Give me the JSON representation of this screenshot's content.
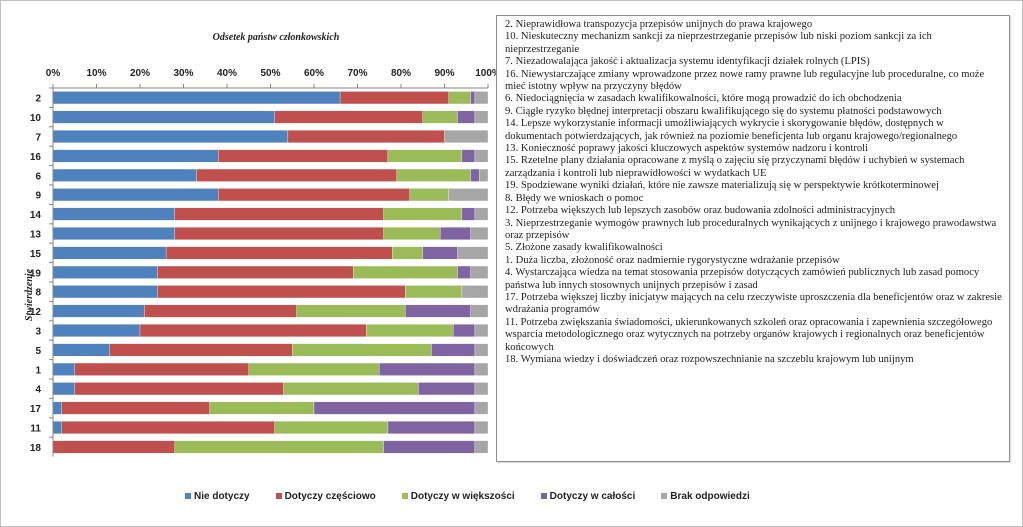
{
  "chart_data": {
    "type": "bar",
    "orientation": "horizontal",
    "stacked": true,
    "title": "Odsetek państw członkowskich",
    "ylabel": "Stwierdzenie",
    "xlim": [
      0,
      100
    ],
    "xticks": [
      "0%",
      "10%",
      "20%",
      "30%",
      "40%",
      "50%",
      "60%",
      "70%",
      "80%",
      "90%",
      "100%"
    ],
    "categories": [
      "2",
      "10",
      "7",
      "16",
      "6",
      "9",
      "14",
      "13",
      "15",
      "19",
      "8",
      "12",
      "3",
      "5",
      "1",
      "4",
      "17",
      "11",
      "18"
    ],
    "series": [
      {
        "name": "Nie dotyczy",
        "color": "#4f81bd",
        "values": [
          66,
          51,
          54,
          38,
          33,
          38,
          28,
          28,
          26,
          24,
          24,
          21,
          20,
          13,
          5,
          5,
          2,
          2,
          0
        ]
      },
      {
        "name": "Dotyczy częściowo",
        "color": "#c0504d",
        "values": [
          25,
          34,
          36,
          39,
          46,
          44,
          48,
          48,
          52,
          45,
          57,
          35,
          52,
          42,
          40,
          48,
          34,
          49,
          28
        ]
      },
      {
        "name": "Dotyczy w większości",
        "color": "#9bbb59",
        "values": [
          5,
          8,
          0,
          17,
          17,
          9,
          18,
          13,
          7,
          24,
          13,
          25,
          20,
          32,
          30,
          31,
          24,
          26,
          48
        ]
      },
      {
        "name": "Dotyczy w całości",
        "color": "#8064a2",
        "values": [
          1,
          4,
          0,
          3,
          2,
          0,
          3,
          7,
          8,
          3,
          0,
          15,
          5,
          10,
          22,
          13,
          37,
          20,
          21
        ]
      },
      {
        "name": "Brak odpowiedzi",
        "color": "#a6a6a6",
        "values": [
          3,
          3,
          10,
          3,
          2,
          9,
          3,
          4,
          7,
          4,
          6,
          4,
          3,
          3,
          3,
          3,
          3,
          3,
          3
        ]
      }
    ],
    "legend_position": "bottom",
    "grid": false
  },
  "notes": [
    "2.   Nieprawidłowa transpozycja przepisów unijnych  do prawa krajowego",
    "10.  Nieskuteczny mechanizm sankcji za nieprzestrzeganie przepisów lub niski poziom  sankcji za ich nieprzestrzeganie",
    "7.   Niezadowalająca jakość i aktualizacja systemu identyfikacji  działek rolnych (LPIS)",
    "16.  Niewystarczające zmiany wprowadzone przez nowe ramy prawne lub regulacyjne lub proceduralne, co może mieć istotny  wpływ na przyczyny błędów",
    "6.   Niedociągnięcia  w zasadach kwalifikowalności,  które mogą prowadzić do ich obchodzenia",
    "9.   Ciągłe ryzyko błędnej interpretacji obszaru kwalifikującego  się do systemu płatności podstawowych",
    "14. Lepsze wykorzystanie informacji umożliwiających  wykrycie i skorygowanie błędów, dostępnych w dokumentach potwierdzających, jak również na poziomie  beneficjenta lub organu krajowego/regionalnego",
    "13. Konieczność poprawy jakości kluczowych aspektów systemów nadzoru i kontroli",
    "15. Rzetelne plany działania  opracowane z myślą o zajęciu się przyczynami  błędów i uchybień  w systemach zarządzania i kontroli  lub  nieprawidłowości  w wydatkach UE",
    "19. Spodziewane wyniki działań,  które nie zawsze materializują  się w perspektywie krótkoterminowej",
    "8.   Błędy we wnioskach o pomoc",
    "12. Potrzeba większych lub lepszych zasobów oraz budowania zdolności  administracyjnych",
    "3.   Nieprzestrzeganie wymogów prawnych lub proceduralnych wynikających z unijnego  i krajowego prawodawstwa oraz przepisów",
    "5.   Złożone  zasady kwalifikowalności",
    "1.   Duża liczba, złożoność oraz nadmiernie  rygorystyczne  wdrażanie przepisów",
    "4.   Wystarczająca wiedza na temat stosowania przepisów dotyczących zamówień publicznych  lub zasad pomocy państwa lub innych  stosownych unijnych  przepisów i zasad",
    "17. Potrzeba większej liczby inicjatyw  mających na celu rzeczywiste uproszczenia dla beneficjentów  oraz w zakresie wdrażania programów",
    "11. Potrzeba zwiększania świadomości, ukierunkowanych  szkoleń oraz opracowania i zapewnienia szczegółowego wsparcia metodologicznego  oraz wytycznych na potrzeby organów krajowych i regionalnych  oraz beneficjentów końcowych",
    "18.  Wymiana wiedzy i doświadczeń oraz rozpowszechnianie  na szczeblu krajowym lub unijnym"
  ]
}
